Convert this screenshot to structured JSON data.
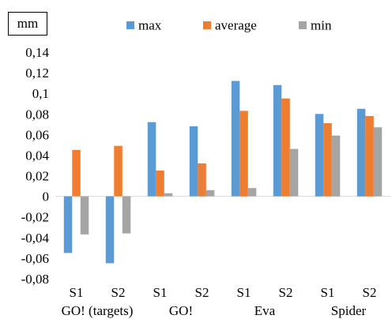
{
  "chart_data": {
    "type": "bar",
    "unit_label": "mm",
    "groups": [
      "GO! (targets)",
      "GO!",
      "Eva",
      "Spider"
    ],
    "subcategories": [
      "S1",
      "S2",
      "S1",
      "S2",
      "S1",
      "S2",
      "S1",
      "S2"
    ],
    "ylim": [
      -0.08,
      0.14
    ],
    "yticks": [
      "0,14",
      "0,12",
      "0,1",
      "0,08",
      "0,06",
      "0,04",
      "0,02",
      "0",
      "-0,02",
      "-0,04",
      "-0,06",
      "-0,08"
    ],
    "ytick_values": [
      0.14,
      0.12,
      0.1,
      0.08,
      0.06,
      0.04,
      0.02,
      0,
      -0.02,
      -0.04,
      -0.06,
      -0.08
    ],
    "grid": false,
    "legend_position": "top",
    "series": [
      {
        "name": "max",
        "color": "#5b9bd5",
        "values": [
          -0.055,
          -0.065,
          0.072,
          0.068,
          0.112,
          0.108,
          0.08,
          0.085
        ]
      },
      {
        "name": "average",
        "color": "#ed7d31",
        "values": [
          0.045,
          0.049,
          0.025,
          0.032,
          0.083,
          0.095,
          0.071,
          0.078
        ]
      },
      {
        "name": "min",
        "color": "#a5a5a5",
        "values": [
          -0.037,
          -0.036,
          0.003,
          0.006,
          0.008,
          0.046,
          0.059,
          0.067
        ]
      }
    ]
  }
}
